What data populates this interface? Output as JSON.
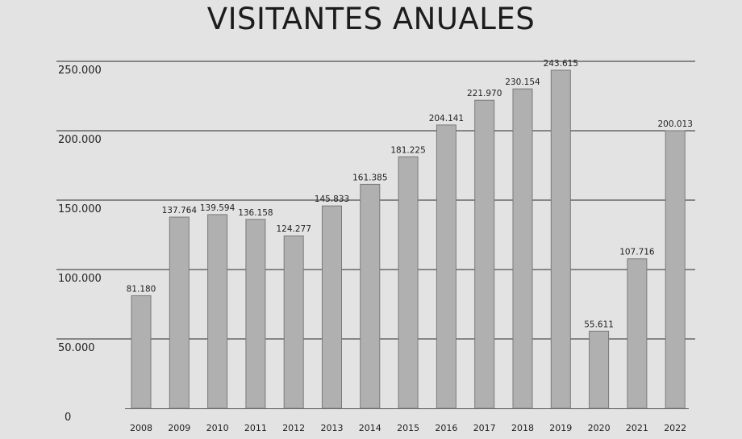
{
  "title": "VISITANTES ANUALES",
  "colors": {
    "background": "#e3e3e3",
    "bar_fill": "#b0b0b0",
    "bar_stroke": "#7a7a7a",
    "gridline": "#2a2a2a"
  },
  "chart_data": {
    "type": "bar",
    "title": "VISITANTES ANUALES",
    "xlabel": "",
    "ylabel": "",
    "ylim": [
      0,
      250000
    ],
    "grid": true,
    "y_ticks": [
      {
        "value": 0,
        "label": "0"
      },
      {
        "value": 50000,
        "label": "50.000"
      },
      {
        "value": 100000,
        "label": "100.000"
      },
      {
        "value": 150000,
        "label": "150.000"
      },
      {
        "value": 200000,
        "label": "200.000"
      },
      {
        "value": 250000,
        "label": "250.000"
      }
    ],
    "categories": [
      "2008",
      "2009",
      "2010",
      "2011",
      "2012",
      "2013",
      "2014",
      "2015",
      "2016",
      "2017",
      "2018",
      "2019",
      "2020",
      "2021",
      "2022"
    ],
    "values": [
      81180,
      137764,
      139594,
      136158,
      124277,
      145833,
      161385,
      181225,
      204141,
      221970,
      230154,
      243615,
      55611,
      107716,
      200013
    ],
    "value_labels": [
      "81.180",
      "137.764",
      "139.594",
      "136.158",
      "124.277",
      "145.833",
      "161.385",
      "181.225",
      "204.141",
      "221.970",
      "230.154",
      "243.615",
      "55.611",
      "107.716",
      "200.013"
    ]
  }
}
